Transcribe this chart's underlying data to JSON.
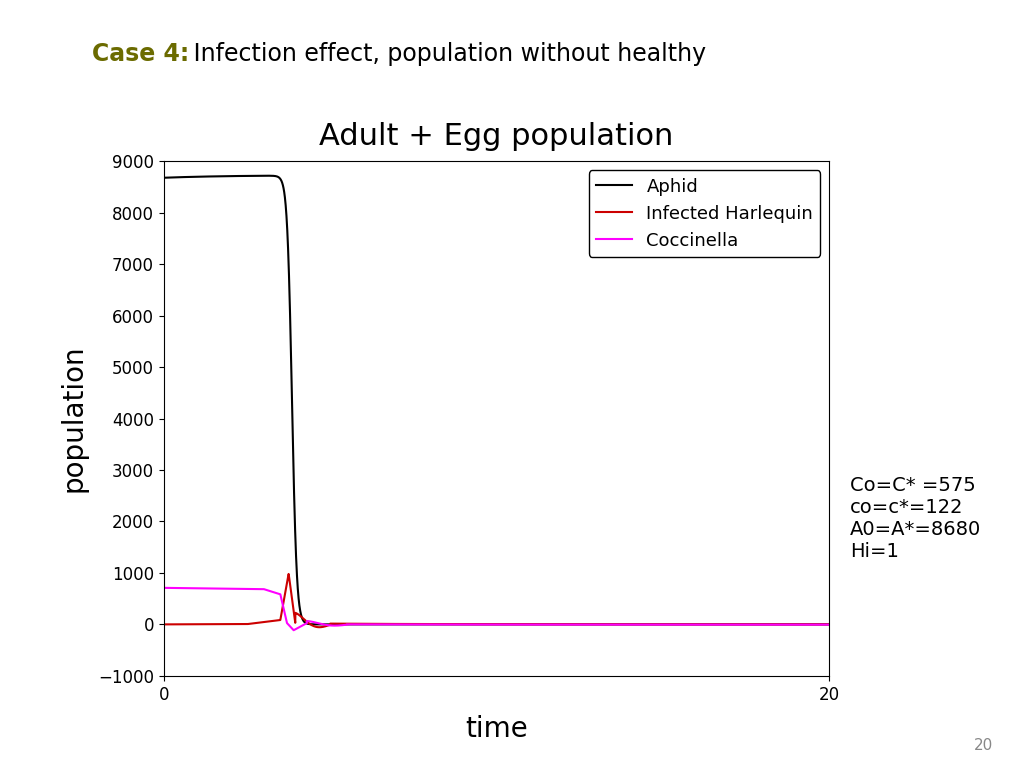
{
  "title": "Adult + Egg population",
  "slide_title_bold": "Case 4:",
  "slide_title_normal": " Infection effect, population without healthy",
  "xlabel": "time",
  "ylabel": "population",
  "xlim": [
    0,
    20
  ],
  "ylim": [
    -1000,
    9000
  ],
  "yticks": [
    -1000,
    0,
    1000,
    2000,
    3000,
    4000,
    5000,
    6000,
    7000,
    8000,
    9000
  ],
  "xticks": [
    0,
    20
  ],
  "legend_labels": [
    "Aphid",
    "Infected Harlequin",
    "Coccinella"
  ],
  "legend_colors": [
    "#000000",
    "#cc0000",
    "#ff00ff"
  ],
  "annotation": "Co=C* =575\nco=c*=122\nA0=A*=8680\nHi=1",
  "slide_number": "20",
  "aphid_color": "#000000",
  "infected_color": "#cc0000",
  "coccinella_color": "#ff00ff",
  "case_color": "#6b6b00",
  "title_fontsize": 22,
  "slide_title_fontsize": 17,
  "axis_label_fontsize": 20,
  "tick_fontsize": 12,
  "legend_fontsize": 13,
  "annotation_fontsize": 14
}
